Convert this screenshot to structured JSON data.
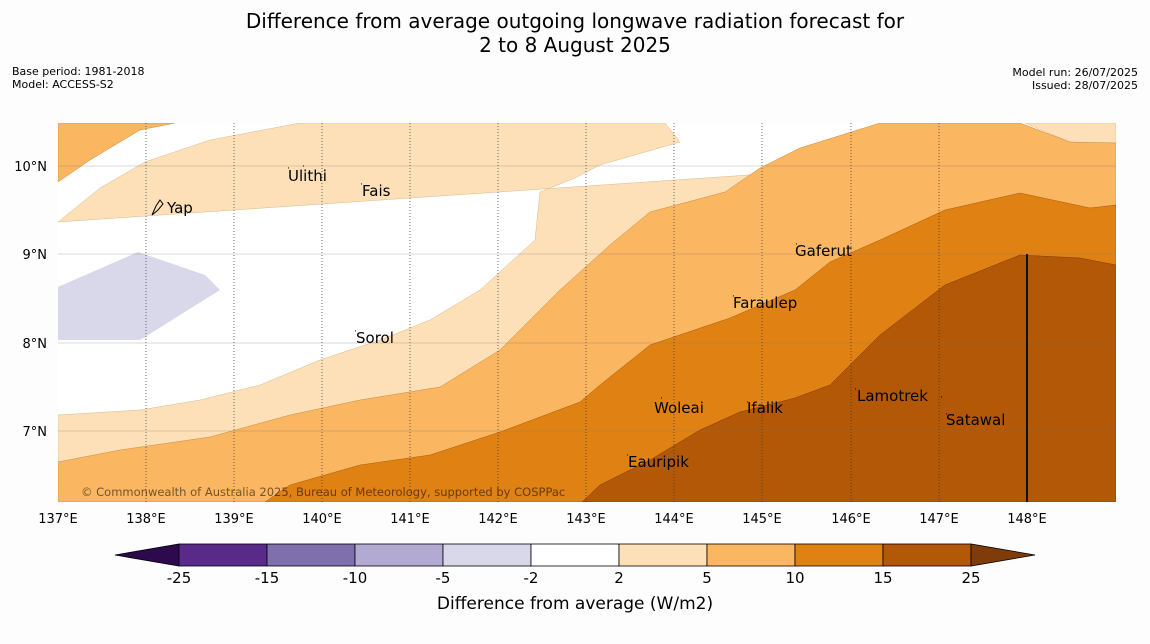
{
  "header": {
    "title_line1": "Difference from average outgoing longwave radiation forecast for",
    "title_line2": "2 to 8 August 2025",
    "base_period": "Base period: 1981-2018",
    "model": "Model: ACCESS-S2",
    "model_run": "Model run: 26/07/2025",
    "issued": "Issued: 28/07/2025"
  },
  "map": {
    "lon_ticks": [
      "137°E",
      "138°E",
      "139°E",
      "140°E",
      "141°E",
      "142°E",
      "143°E",
      "144°E",
      "145°E",
      "146°E",
      "147°E",
      "148°E"
    ],
    "lat_ticks": [
      "10°N",
      "9°N",
      "8°N",
      "7°N"
    ],
    "places": [
      "Ulithi",
      "Fais",
      "Yap",
      "Gaferut",
      "Faraulep",
      "Sorol",
      "Lamotrek",
      "Woleai",
      "Ifalik",
      "Satawal",
      "Eauripik"
    ],
    "copyright": "© Commonwealth of Australia 2025, Bureau of Meteorology, supported by COSPPac"
  },
  "colorbar": {
    "labels": [
      "-25",
      "-15",
      "-10",
      "-5",
      "-2",
      "2",
      "5",
      "10",
      "15",
      "25"
    ],
    "colors": [
      "#5a2a8a",
      "#7f6fad",
      "#b2aad2",
      "#d8d8ea",
      "#ffffff",
      "#fde0b7",
      "#fab660",
      "#e08114",
      "#b35806"
    ],
    "under_color": "#2d0a4e",
    "over_color": "#7f3b08",
    "title": "Difference from average (W/m2)"
  }
}
